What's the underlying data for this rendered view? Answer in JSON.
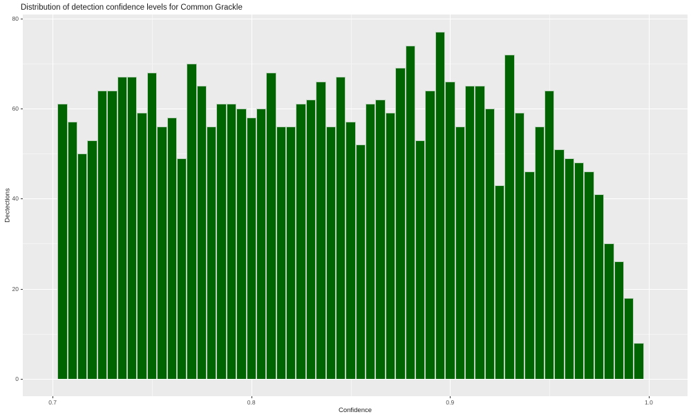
{
  "chart_data": {
    "type": "bar",
    "subtype": "histogram",
    "title": "Distribution of detection confidence levels for Common Grackle",
    "xlabel": "Confidence",
    "ylabel": "Dectections",
    "bin_start": 0.7025,
    "bin_width": 0.005,
    "values": [
      61,
      57,
      50,
      53,
      64,
      64,
      67,
      67,
      59,
      68,
      56,
      58,
      49,
      70,
      65,
      56,
      61,
      61,
      60,
      58,
      60,
      68,
      56,
      56,
      61,
      62,
      66,
      56,
      67,
      57,
      52,
      61,
      62,
      59,
      69,
      74,
      53,
      64,
      77,
      66,
      56,
      65,
      65,
      60,
      43,
      72,
      59,
      46,
      56,
      64,
      51,
      49,
      48,
      46,
      41,
      30,
      26,
      18,
      8
    ],
    "x_ticks": [
      0.7,
      0.8,
      0.9,
      1.0
    ],
    "x_tick_labels": [
      "0.7",
      "0.8",
      "0.9",
      "1.0"
    ],
    "x_minor_ticks": [
      0.75,
      0.85,
      0.95
    ],
    "y_ticks": [
      0,
      20,
      40,
      60,
      80
    ],
    "y_tick_labels": [
      "0",
      "20",
      "40",
      "60",
      "80"
    ],
    "y_minor_ticks": [
      10,
      30,
      50,
      70
    ],
    "xlim": [
      0.685,
      1.0195
    ],
    "ylim": [
      -3.85,
      80.85
    ],
    "grid": true,
    "legend": null,
    "colors": {
      "bar_fill": "#006400",
      "bar_edge": "#BCD2BC",
      "panel_bg": "#EBEBEB",
      "grid_major": "#FFFFFF",
      "grid_minor": "#F5F5F5",
      "tick_mark": "#333333",
      "tick_text": "#4D4D4D",
      "title_text": "#1a1a1a",
      "axis_title_text": "#1a1a1a"
    }
  }
}
